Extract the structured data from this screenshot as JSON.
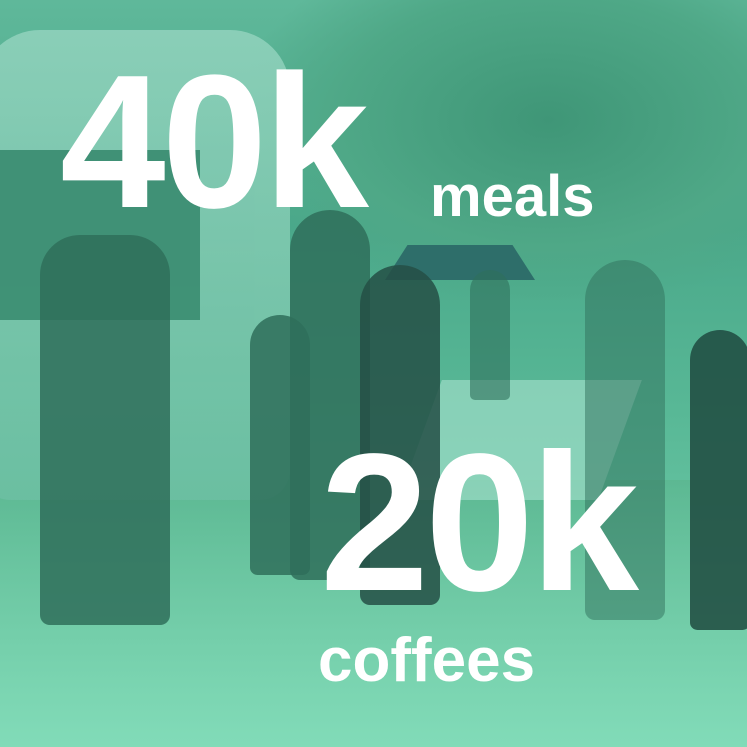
{
  "stats": [
    {
      "value": "40k",
      "label": "meals"
    },
    {
      "value": "20k",
      "label": "coffees"
    }
  ],
  "colors": {
    "overlay": "#5cb896",
    "text": "#ffffff"
  }
}
